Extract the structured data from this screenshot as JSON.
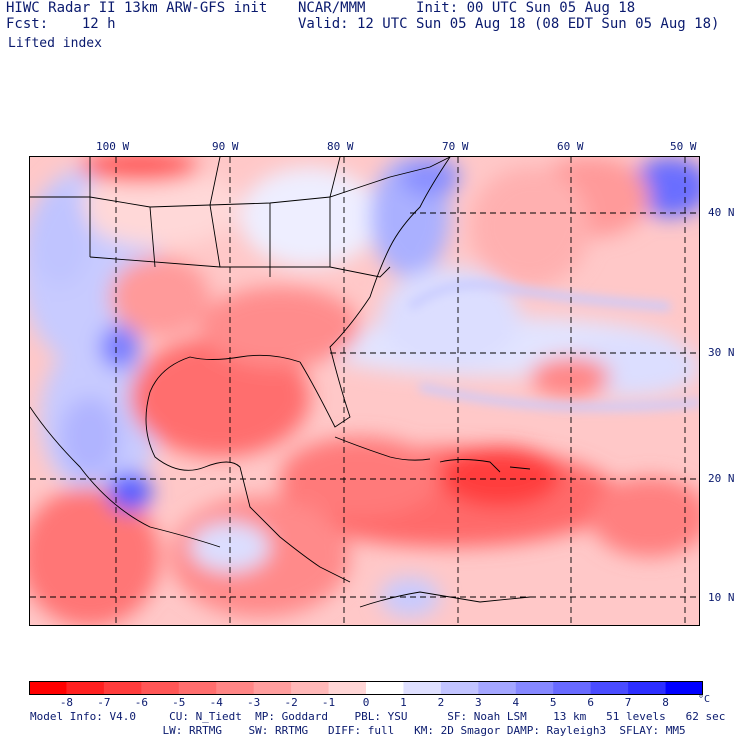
{
  "header": {
    "title_line": "HIWC Radar II 13km ARW-GFS init",
    "forecast_line": "Fcst:    12 h",
    "source": "NCAR/MMM",
    "init_line": "Init: 00 UTC Sun 05 Aug 18",
    "valid_line": "Valid: 12 UTC Sun 05 Aug 18 (08 EDT Sun 05 Aug 18)"
  },
  "field_name": "Lifted index",
  "longitude_labels": [
    "100 W",
    "90 W",
    "80 W",
    "70 W",
    "60 W",
    "50 W"
  ],
  "latitude_labels": [
    "40 N",
    "30 N",
    "20 N",
    "10 N"
  ],
  "colorbar": {
    "ticks": [
      "-8",
      "-7",
      "-6",
      "-5",
      "-4",
      "-3",
      "-2",
      "-1",
      "0",
      "1",
      "2",
      "3",
      "4",
      "5",
      "6",
      "7",
      "8"
    ],
    "unit": "°C",
    "colors": [
      "#ff0000",
      "#ff2020",
      "#ff3c3c",
      "#ff5656",
      "#ff6e6e",
      "#ff8686",
      "#ff9e9e",
      "#ffb8b8",
      "#ffd6d6",
      "#ffffff",
      "#dfe0ff",
      "#c2c4ff",
      "#a4a6ff",
      "#8688ff",
      "#686aff",
      "#4a4cff",
      "#2c2eff",
      "#0000ff"
    ]
  },
  "footer": {
    "line1": "Model Info: V4.0     CU: N_Tiedt  MP: Goddard    PBL: YSU      SF: Noah LSM    13 km   51 levels   62 sec",
    "line2": "                    LW: RRTMG    SW: RRTMG   DIFF: full   KM: 2D Smagor DAMP: Rayleigh3  SFLAY: MM5"
  }
}
